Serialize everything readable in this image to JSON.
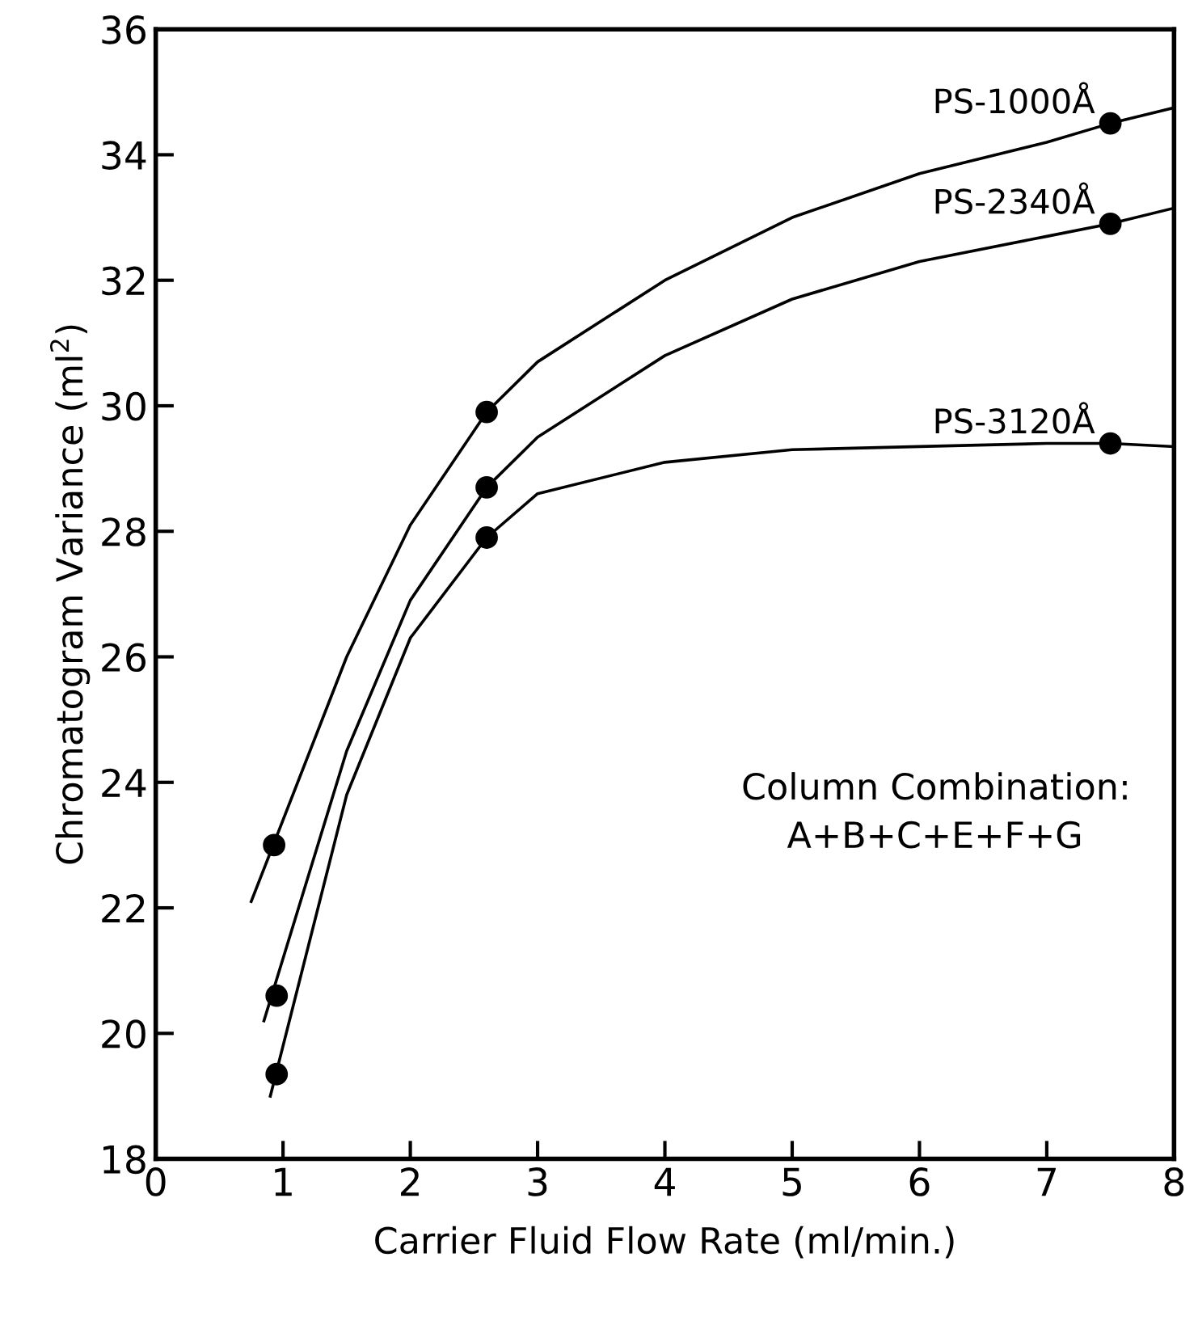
{
  "chart_data": {
    "type": "scatter",
    "xlabel": "Carrier Fluid Flow Rate (ml/min.)",
    "ylabel": "Chromatogram Variance (ml$^{2}$)",
    "xlim": [
      0,
      8
    ],
    "ylim": [
      18,
      36
    ],
    "xticks": [
      0,
      1,
      2,
      3,
      4,
      5,
      6,
      7,
      8
    ],
    "yticks": [
      18,
      20,
      22,
      24,
      26,
      28,
      30,
      32,
      34,
      36
    ],
    "grid": false,
    "legend": false,
    "marker": "circle",
    "annotations": [
      "Column Combination:\n    A+B+C+E+F+G"
    ],
    "series": [
      {
        "name": "PS-1000Å",
        "color": "#000000",
        "x": [
          0.93,
          2.6,
          7.5
        ],
        "values": [
          23.0,
          29.9,
          34.5
        ]
      },
      {
        "name": "PS-2340Å",
        "color": "#000000",
        "x": [
          0.95,
          2.6,
          7.5
        ],
        "values": [
          20.6,
          28.7,
          32.9
        ]
      },
      {
        "name": "PS-3120Å",
        "color": "#000000",
        "x": [
          0.95,
          2.6,
          7.5
        ],
        "values": [
          19.35,
          27.9,
          29.4
        ]
      },
      {
        "type": "line",
        "color": "#000000",
        "marker": "none",
        "x": [
          0.75,
          1.5,
          2,
          2.6,
          3,
          4,
          5,
          6,
          7,
          7.5,
          8
        ],
        "values": [
          22.1,
          26.0,
          28.1,
          29.9,
          30.7,
          32.0,
          33.0,
          33.7,
          34.2,
          34.5,
          34.75
        ]
      },
      {
        "type": "line",
        "color": "#000000",
        "marker": "none",
        "x": [
          0.85,
          1.5,
          2,
          2.6,
          3,
          4,
          5,
          6,
          7,
          7.5,
          8
        ],
        "values": [
          20.2,
          24.5,
          26.9,
          28.7,
          29.5,
          30.8,
          31.7,
          32.3,
          32.7,
          32.9,
          33.15
        ]
      },
      {
        "type": "line",
        "color": "#000000",
        "marker": "none",
        "x": [
          0.9,
          1.5,
          2,
          2.6,
          3,
          4,
          5,
          6,
          7,
          7.5,
          8
        ],
        "values": [
          19.0,
          23.8,
          26.3,
          27.9,
          28.6,
          29.1,
          29.3,
          29.35,
          29.4,
          29.4,
          29.35
        ]
      }
    ]
  }
}
